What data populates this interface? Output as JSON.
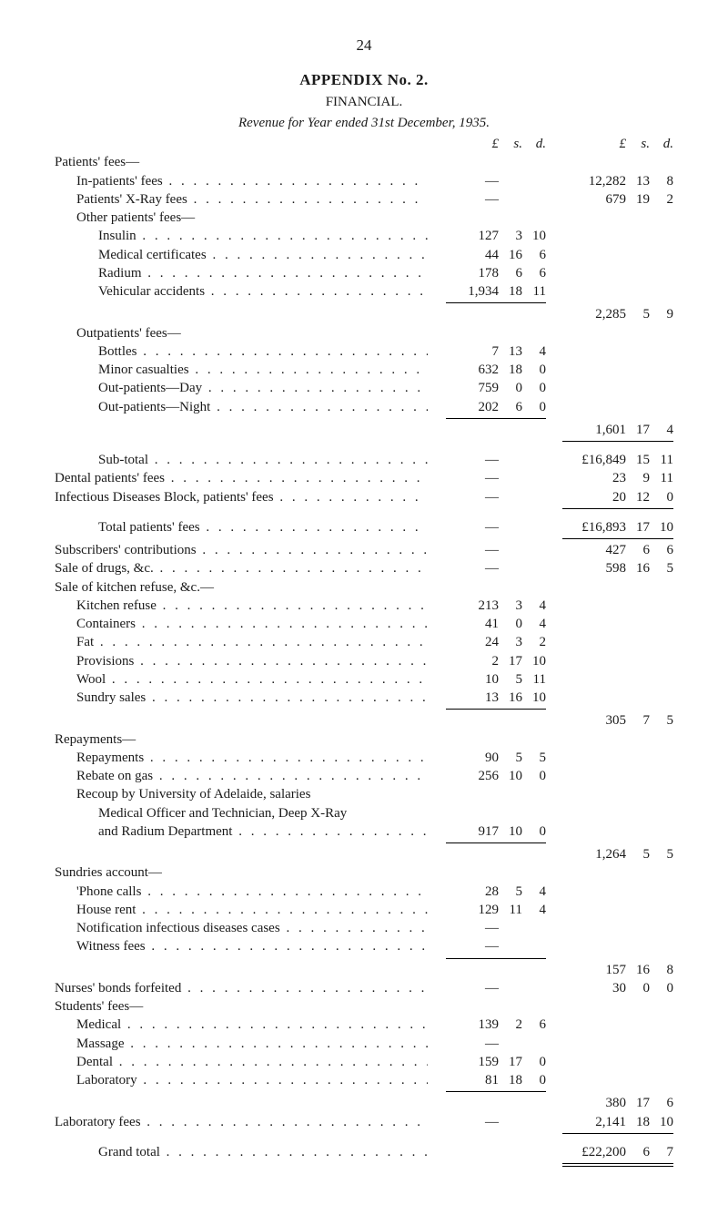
{
  "page_number": "24",
  "titles": {
    "appendix": "APPENDIX No. 2.",
    "financial": "FINANCIAL.",
    "revenue": "Revenue for Year ended 31st December, 1935."
  },
  "header": {
    "L": "£",
    "s": "s.",
    "d": "d."
  },
  "sections": {
    "patients_fees_hdr": "Patients' fees—",
    "in_patients": {
      "label": "In-patients' fees",
      "col1": {
        "L": "—",
        "s": "",
        "d": ""
      },
      "col2": {
        "L": "12,282",
        "s": "13",
        "d": "8"
      }
    },
    "xray": {
      "label": "Patients' X-Ray fees",
      "col1": {
        "L": "—",
        "s": "",
        "d": ""
      },
      "col2": {
        "L": "679",
        "s": "19",
        "d": "2"
      }
    },
    "other_hdr": "Other patients' fees—",
    "insulin": {
      "label": "Insulin",
      "col1": {
        "L": "127",
        "s": "3",
        "d": "10"
      }
    },
    "medcert": {
      "label": "Medical certificates",
      "col1": {
        "L": "44",
        "s": "16",
        "d": "6"
      }
    },
    "radium": {
      "label": "Radium",
      "col1": {
        "L": "178",
        "s": "6",
        "d": "6"
      }
    },
    "vehic": {
      "label": "Vehicular accidents",
      "col1": {
        "L": "1,934",
        "s": "18",
        "d": "11"
      }
    },
    "other_total": {
      "col2": {
        "L": "2,285",
        "s": "5",
        "d": "9"
      }
    },
    "outp_hdr": "Outpatients' fees—",
    "bottles": {
      "label": "Bottles",
      "col1": {
        "L": "7",
        "s": "13",
        "d": "4"
      }
    },
    "minor": {
      "label": "Minor casualties",
      "col1": {
        "L": "632",
        "s": "18",
        "d": "0"
      }
    },
    "opday": {
      "label": "Out-patients—Day",
      "col1": {
        "L": "759",
        "s": "0",
        "d": "0"
      }
    },
    "opnight": {
      "label": "Out-patients—Night",
      "col1": {
        "L": "202",
        "s": "6",
        "d": "0"
      }
    },
    "outp_total": {
      "col2": {
        "L": "1,601",
        "s": "17",
        "d": "4"
      }
    },
    "subtotal": {
      "label": "Sub-total",
      "col1": {
        "L": "—",
        "s": "",
        "d": ""
      },
      "col2": {
        "L": "£16,849",
        "s": "15",
        "d": "11"
      }
    },
    "dental": {
      "label": "Dental patients' fees",
      "col1": {
        "L": "—",
        "s": "",
        "d": ""
      },
      "col2": {
        "L": "23",
        "s": "9",
        "d": "11"
      }
    },
    "infect": {
      "label": "Infectious Diseases Block, patients' fees",
      "col1": {
        "L": "—",
        "s": "",
        "d": ""
      },
      "col2": {
        "L": "20",
        "s": "12",
        "d": "0"
      }
    },
    "total_pat": {
      "label": "Total patients' fees",
      "col1": {
        "L": "—",
        "s": "",
        "d": ""
      },
      "col2": {
        "L": "£16,893",
        "s": "17",
        "d": "10"
      }
    },
    "subs": {
      "label": "Subscribers' contributions",
      "col1": {
        "L": "—",
        "s": "",
        "d": ""
      },
      "col2": {
        "L": "427",
        "s": "6",
        "d": "6"
      }
    },
    "drugs": {
      "label": "Sale of drugs, &c.",
      "col1": {
        "L": "—",
        "s": "",
        "d": ""
      },
      "col2": {
        "L": "598",
        "s": "16",
        "d": "5"
      }
    },
    "kitchen_hdr": "Sale of kitchen refuse, &c.—",
    "kref": {
      "label": "Kitchen refuse",
      "col1": {
        "L": "213",
        "s": "3",
        "d": "4"
      }
    },
    "cont": {
      "label": "Containers",
      "col1": {
        "L": "41",
        "s": "0",
        "d": "4"
      }
    },
    "fat": {
      "label": "Fat",
      "col1": {
        "L": "24",
        "s": "3",
        "d": "2"
      }
    },
    "prov": {
      "label": "Provisions",
      "col1": {
        "L": "2",
        "s": "17",
        "d": "10"
      }
    },
    "wool": {
      "label": "Wool",
      "col1": {
        "L": "10",
        "s": "5",
        "d": "11"
      }
    },
    "sundry": {
      "label": "Sundry sales",
      "col1": {
        "L": "13",
        "s": "16",
        "d": "10"
      }
    },
    "kitchen_total": {
      "col2": {
        "L": "305",
        "s": "7",
        "d": "5"
      }
    },
    "repay_hdr": "Repayments—",
    "repay": {
      "label": "Repayments",
      "col1": {
        "L": "90",
        "s": "5",
        "d": "5"
      }
    },
    "rebate": {
      "label": "Rebate on gas",
      "col1": {
        "L": "256",
        "s": "10",
        "d": "0"
      }
    },
    "recoup1": "Recoup by University of Adelaide, salaries",
    "recoup2": "Medical Officer and Technician, Deep X-Ray",
    "recoup3": {
      "label": "and Radium Department",
      "col1": {
        "L": "917",
        "s": "10",
        "d": "0"
      }
    },
    "repay_total": {
      "col2": {
        "L": "1,264",
        "s": "5",
        "d": "5"
      }
    },
    "sund_hdr": "Sundries account—",
    "phone": {
      "label": "'Phone calls",
      "col1": {
        "L": "28",
        "s": "5",
        "d": "4"
      }
    },
    "house": {
      "label": "House rent",
      "col1": {
        "L": "129",
        "s": "11",
        "d": "4"
      }
    },
    "notif": {
      "label": "Notification infectious diseases cases",
      "col1": {
        "L": "—",
        "s": "",
        "d": ""
      }
    },
    "witness": {
      "label": "Witness fees",
      "col1": {
        "L": "—",
        "s": "",
        "d": ""
      }
    },
    "sund_total": {
      "col2": {
        "L": "157",
        "s": "16",
        "d": "8"
      }
    },
    "nurses": {
      "label": "Nurses' bonds forfeited",
      "col1": {
        "L": "—",
        "s": "",
        "d": ""
      },
      "col2": {
        "L": "30",
        "s": "0",
        "d": "0"
      }
    },
    "stud_hdr": "Students' fees—",
    "med": {
      "label": "Medical",
      "col1": {
        "L": "139",
        "s": "2",
        "d": "6"
      }
    },
    "massage": {
      "label": "Massage",
      "col1": {
        "L": "—",
        "s": "",
        "d": ""
      }
    },
    "dent": {
      "label": "Dental",
      "col1": {
        "L": "159",
        "s": "17",
        "d": "0"
      }
    },
    "lab": {
      "label": "Laboratory",
      "col1": {
        "L": "81",
        "s": "18",
        "d": "0"
      }
    },
    "stud_total": {
      "col2": {
        "L": "380",
        "s": "17",
        "d": "6"
      }
    },
    "labfees": {
      "label": "Laboratory fees",
      "col1": {
        "L": "—",
        "s": "",
        "d": ""
      },
      "col2": {
        "L": "2,141",
        "s": "18",
        "d": "10"
      }
    },
    "grand": {
      "label": "Grand total",
      "col2": {
        "L": "£22,200",
        "s": "6",
        "d": "7"
      }
    }
  }
}
